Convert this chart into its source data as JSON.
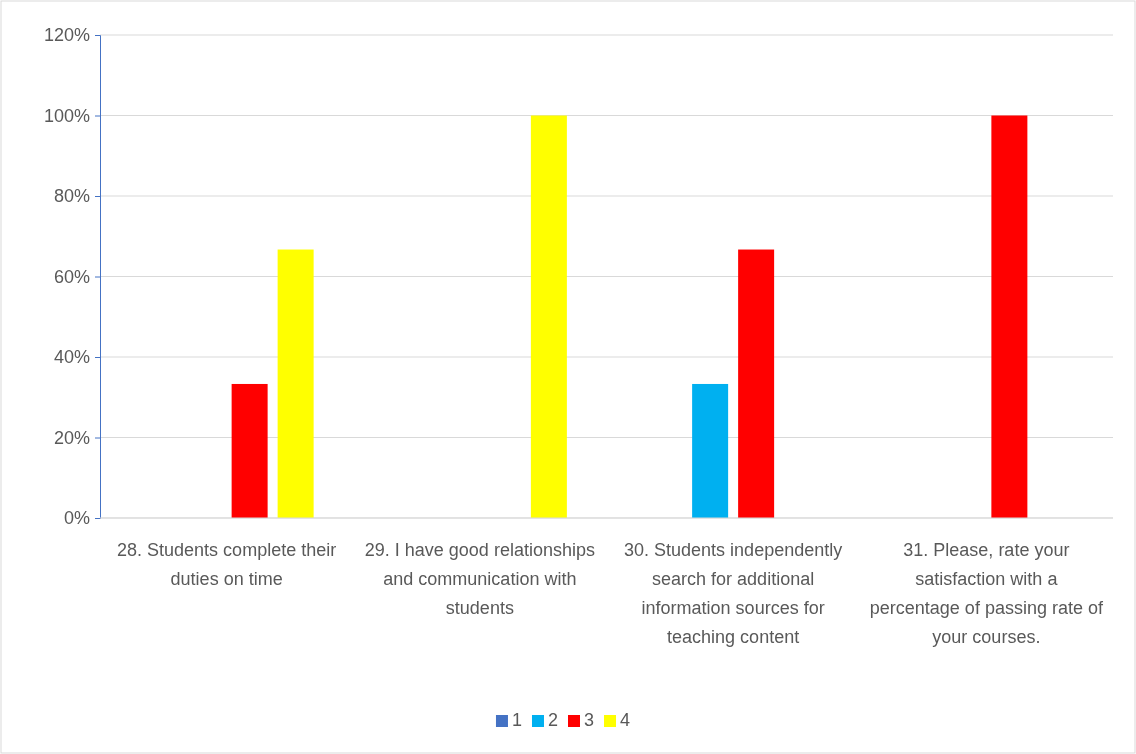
{
  "chart_data": {
    "type": "bar",
    "categories": [
      "28. Students complete their duties on time",
      "29. I have good relationships and communication with students",
      "30. Students independently search for additional information sources for teaching content",
      "31. Please, rate your satisfaction with a percentage of passing rate of your courses."
    ],
    "series": [
      {
        "name": "1",
        "color": "#4472c4",
        "values": [
          0,
          0,
          0,
          0
        ]
      },
      {
        "name": "2",
        "color": "#00b0f0",
        "values": [
          0,
          0,
          33.3,
          0
        ]
      },
      {
        "name": "3",
        "color": "#ff0000",
        "values": [
          33.3,
          0,
          66.7,
          100
        ]
      },
      {
        "name": "4",
        "color": "#ffff00",
        "values": [
          66.7,
          100,
          0,
          0
        ]
      }
    ],
    "ylim": [
      0,
      120
    ],
    "yticks": [
      {
        "value": 0,
        "label": "0%"
      },
      {
        "value": 20,
        "label": "20%"
      },
      {
        "value": 40,
        "label": "40%"
      },
      {
        "value": 60,
        "label": "60%"
      },
      {
        "value": 80,
        "label": "80%"
      },
      {
        "value": 100,
        "label": "100%"
      },
      {
        "value": 120,
        "label": "120%"
      }
    ],
    "grid": "y",
    "legend": "bottom"
  }
}
